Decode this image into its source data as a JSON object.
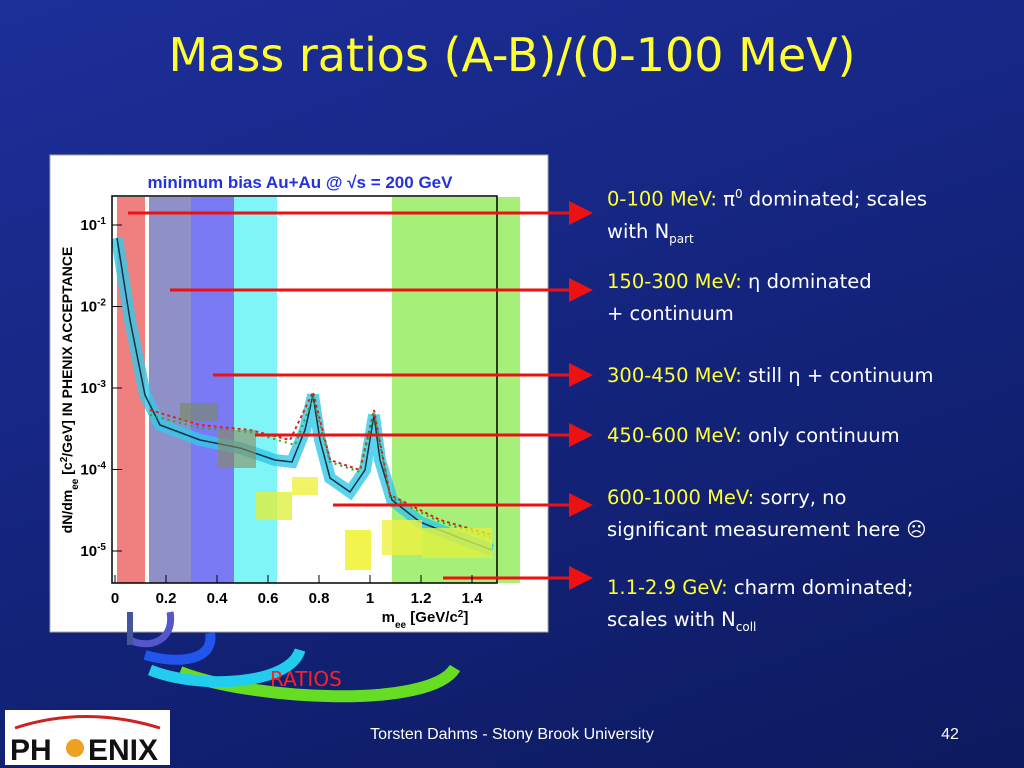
{
  "title": "Mass ratios (A-B)/(0-100 MeV)",
  "plot": {
    "title": "minimum bias Au+Au @ √s = 200 GeV",
    "ylabel": [
      {
        "text": "dN/dm"
      },
      {
        "text": "ee",
        "style": "sub"
      },
      {
        "text": " [c"
      },
      {
        "text": "2",
        "style": "sup"
      },
      {
        "text": "/GeV] IN PHENIX ACCEPTANCE"
      }
    ],
    "xlabel": [
      {
        "text": "m"
      },
      {
        "text": "ee",
        "style": "sub"
      },
      {
        "text": " [GeV/c"
      },
      {
        "text": "2",
        "style": "sup"
      },
      {
        "text": "]"
      }
    ],
    "xticks": [
      0,
      0.2,
      0.4,
      0.6,
      0.8,
      1,
      1.2,
      1.4
    ],
    "yticks": [
      {
        "value": 0.1,
        "base": "10",
        "exp": "-1"
      },
      {
        "value": 0.01,
        "base": "10",
        "exp": "-2"
      },
      {
        "value": 0.001,
        "base": "10",
        "exp": "-3"
      },
      {
        "value": 0.0001,
        "base": "10",
        "exp": "-4"
      },
      {
        "value": 1e-05,
        "base": "10",
        "exp": "-5"
      }
    ],
    "ylog": true
  },
  "items": [
    {
      "range": "0-100 MeV:",
      "parts": [
        {
          "text": " π"
        },
        {
          "text": "0",
          "style": "sup"
        },
        {
          "text": " dominated; scales\nwith N"
        },
        {
          "text": "part",
          "style": "sub"
        }
      ]
    },
    {
      "range": "150-300 MeV:",
      "parts": [
        {
          "text": " η dominated\n+ continuum"
        }
      ]
    },
    {
      "range": "300-450 MeV:",
      "parts": [
        {
          "text": " still η + continuum"
        }
      ]
    },
    {
      "range": "450-600 MeV:",
      "parts": [
        {
          "text": " only continuum"
        }
      ]
    },
    {
      "range": "600-1000 MeV:",
      "parts": [
        {
          "text": " sorry, no\nsignificant measurement here ☹"
        }
      ]
    },
    {
      "range": "1.1-2.9 GeV:",
      "parts": [
        {
          "text": " charm dominated;\nscales with N"
        },
        {
          "text": "coll",
          "style": "sub"
        }
      ]
    }
  ],
  "ratios": "RATIOS",
  "footer": {
    "author": "Torsten Dahms - Stony Brook University",
    "page": "42"
  },
  "logo": {
    "left": "PH",
    "right": "ENIX"
  }
}
